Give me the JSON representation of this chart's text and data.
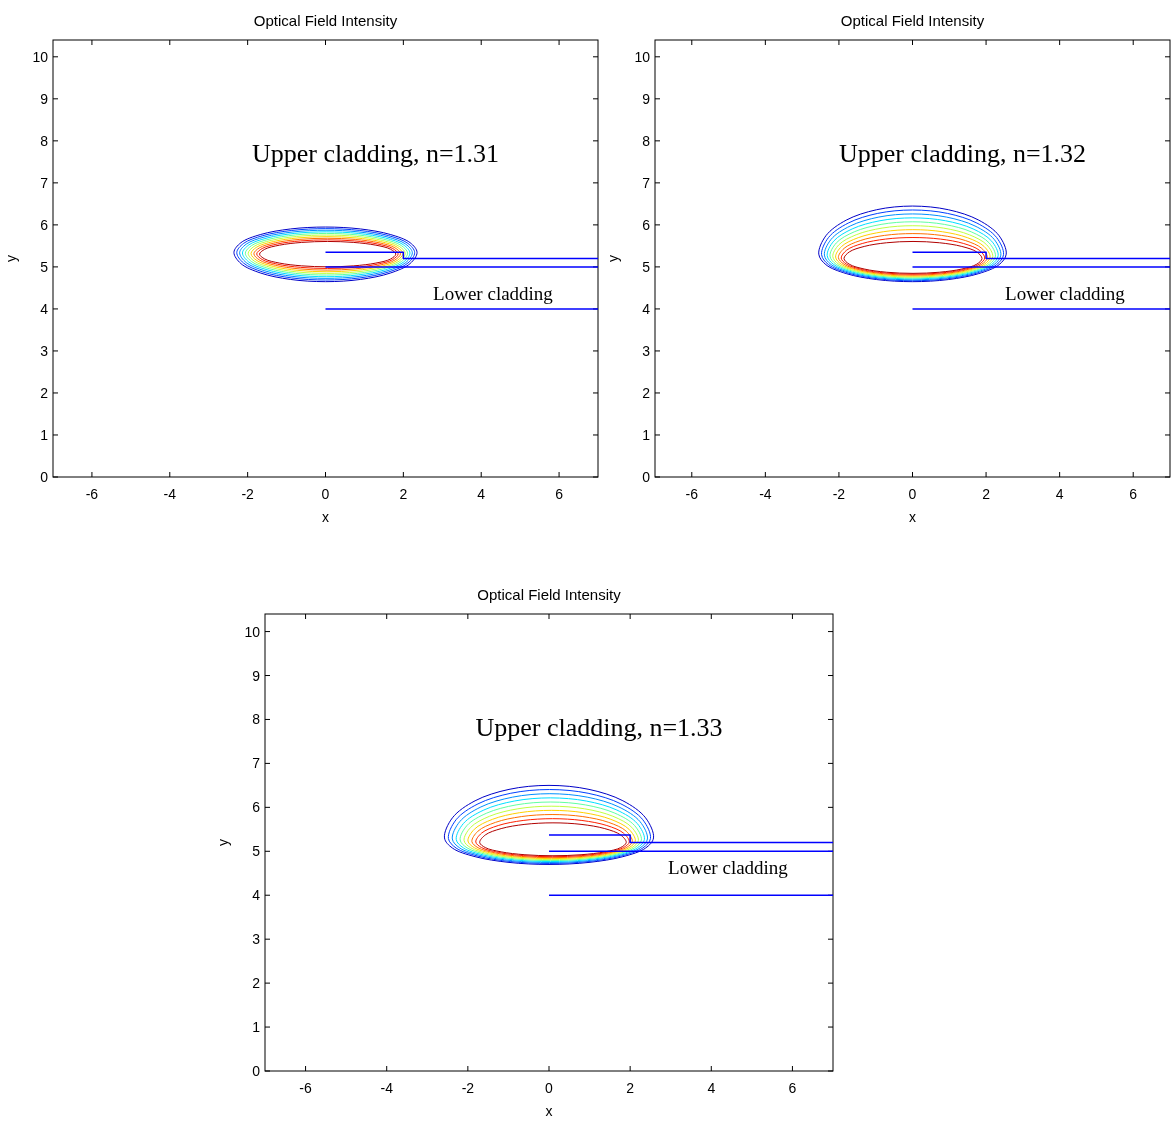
{
  "chart_data": [
    {
      "type": "line",
      "title": "Optical Field Intensity",
      "xlabel": "x",
      "ylabel": "y",
      "xlim": [
        -7,
        7
      ],
      "ylim": [
        0,
        10.4
      ],
      "xticks": [
        -6,
        -4,
        -2,
        0,
        2,
        4,
        6
      ],
      "yticks": [
        0,
        1,
        2,
        3,
        4,
        5,
        6,
        7,
        8,
        9,
        10
      ],
      "grid": false,
      "annotations": [
        "Upper cladding, n=1.31",
        "Lower cladding"
      ],
      "series": [
        {
          "type": "step",
          "color": "#0000ff",
          "x": [
            0,
            2,
            7
          ],
          "values": [
            5.35,
            5.2,
            5.2
          ]
        },
        {
          "color": "#0000ff",
          "x": [
            0,
            7
          ],
          "values": [
            5,
            5
          ]
        },
        {
          "color": "#0000ff",
          "x": [
            0,
            7
          ],
          "values": [
            4,
            4
          ]
        }
      ]
    },
    {
      "type": "line",
      "title": "Optical Field Intensity",
      "xlabel": "x",
      "ylabel": "y",
      "xlim": [
        -7,
        7
      ],
      "ylim": [
        0,
        10.4
      ],
      "xticks": [
        -6,
        -4,
        -2,
        0,
        2,
        4,
        6
      ],
      "yticks": [
        0,
        1,
        2,
        3,
        4,
        5,
        6,
        7,
        8,
        9,
        10
      ],
      "grid": false,
      "annotations": [
        "Upper cladding, n=1.32",
        "Lower cladding"
      ],
      "series": [
        {
          "type": "step",
          "color": "#0000ff",
          "x": [
            0,
            2,
            7
          ],
          "values": [
            5.35,
            5.2,
            5.2
          ]
        },
        {
          "color": "#0000ff",
          "x": [
            0,
            7
          ],
          "values": [
            5,
            5
          ]
        },
        {
          "color": "#0000ff",
          "x": [
            0,
            7
          ],
          "values": [
            4,
            4
          ]
        }
      ]
    },
    {
      "type": "line",
      "title": "Optical Field Intensity",
      "xlabel": "x",
      "ylabel": "y",
      "xlim": [
        -7,
        7
      ],
      "ylim": [
        0,
        10.4
      ],
      "xticks": [
        -6,
        -4,
        -2,
        0,
        2,
        4,
        6
      ],
      "yticks": [
        0,
        1,
        2,
        3,
        4,
        5,
        6,
        7,
        8,
        9,
        10
      ],
      "grid": false,
      "annotations": [
        "Upper cladding, n=1.33",
        "Lower cladding"
      ],
      "series": [
        {
          "type": "step",
          "color": "#0000ff",
          "x": [
            0,
            2,
            7
          ],
          "values": [
            5.37,
            5.2,
            5.2
          ]
        },
        {
          "color": "#0000ff",
          "x": [
            0,
            7
          ],
          "values": [
            5,
            5
          ]
        },
        {
          "color": "#0000ff",
          "x": [
            0,
            7
          ],
          "values": [
            4,
            4
          ]
        }
      ]
    }
  ]
}
